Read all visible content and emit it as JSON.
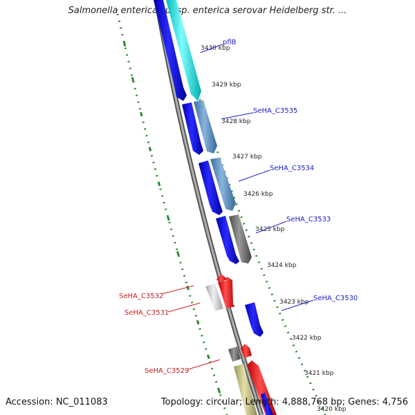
{
  "title": "Salmonella enterica subsp. enterica serovar Heidelberg str. ...",
  "footer": {
    "accession": "Accession: NC_011083",
    "info": "Topology: circular; Length: 4,888,768 bp; Genes: 4,756"
  },
  "ticks": [
    {
      "label": "3430 kbp"
    },
    {
      "label": "3429 kbp"
    },
    {
      "label": "3428 kbp"
    },
    {
      "label": "3427 kbp"
    },
    {
      "label": "3426 kbp"
    },
    {
      "label": "3425 kbp"
    },
    {
      "label": "3424 kbp"
    },
    {
      "label": "3423 kbp"
    },
    {
      "label": "3422 kbp"
    },
    {
      "label": "3421 kbp"
    },
    {
      "label": "3420 kbp"
    }
  ],
  "genes": [
    {
      "name": "pflB",
      "color": "#1a1acc"
    },
    {
      "name": "SeHA_C3535",
      "color": "#1a1acc"
    },
    {
      "name": "SeHA_C3534",
      "color": "#1a1acc"
    },
    {
      "name": "SeHA_C3533",
      "color": "#1a1acc"
    },
    {
      "name": "SeHA_C3530",
      "color": "#1a1acc"
    },
    {
      "name": "SeHA_C3532",
      "color": "#cc1a1a"
    },
    {
      "name": "SeHA_C3531",
      "color": "#cc1a1a"
    },
    {
      "name": "SeHA_C3529",
      "color": "#cc1a1a"
    }
  ]
}
